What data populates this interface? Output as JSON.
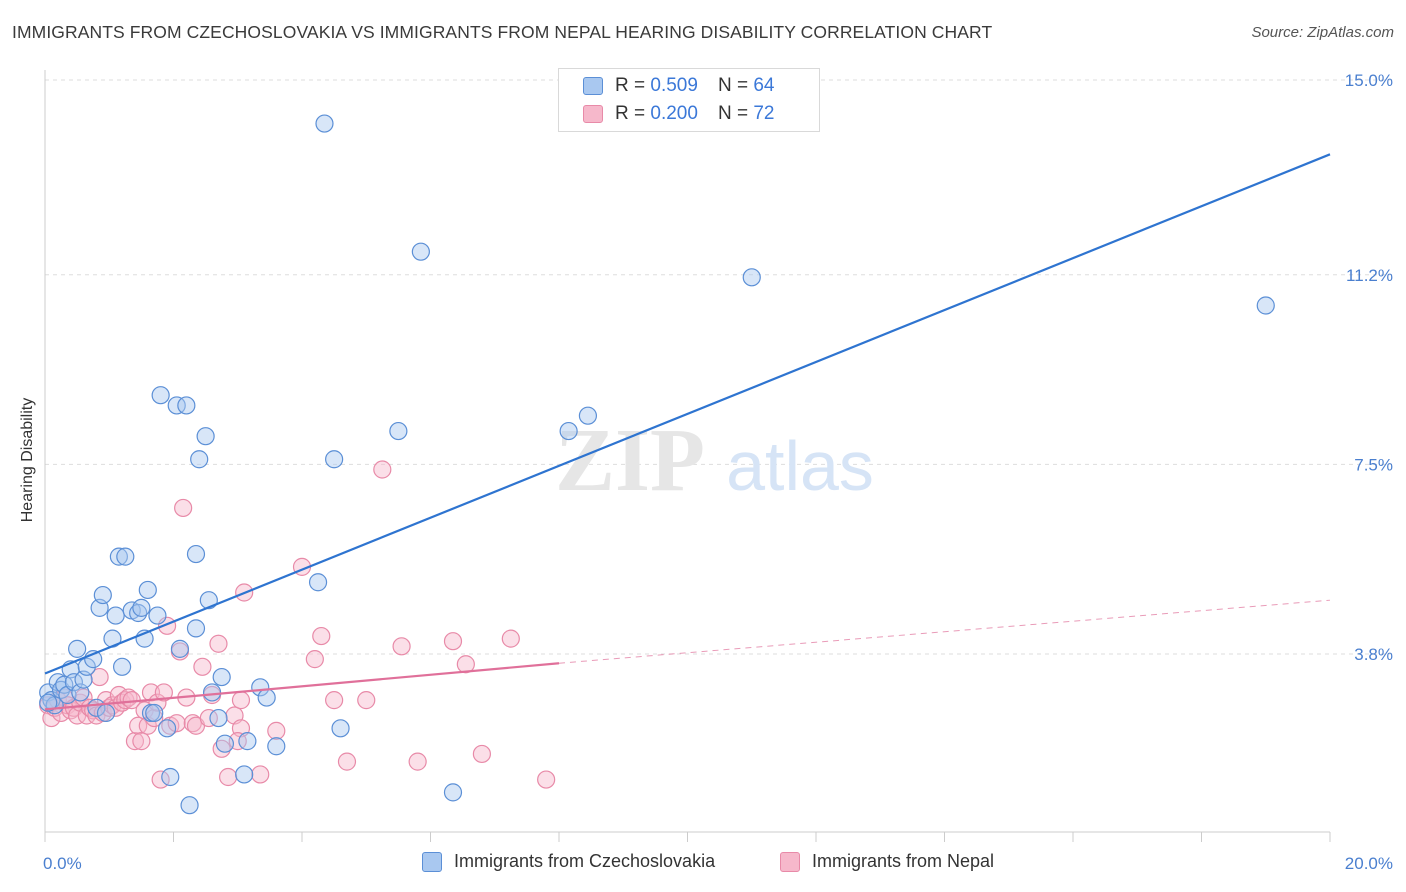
{
  "title": "IMMIGRANTS FROM CZECHOSLOVAKIA VS IMMIGRANTS FROM NEPAL HEARING DISABILITY CORRELATION CHART",
  "source": "Source: ZipAtlas.com",
  "watermark": {
    "zip": "ZIP",
    "atlas": "atlas"
  },
  "legend_top": {
    "rows": [
      {
        "r_label": "R =",
        "r_value": "0.509",
        "n_label": "N =",
        "n_value": "64"
      },
      {
        "r_label": "R =",
        "r_value": "0.200",
        "n_label": "N =",
        "n_value": "72"
      }
    ]
  },
  "legend_bottom": {
    "items": [
      {
        "label": "Immigrants from Czechoslovakia"
      },
      {
        "label": "Immigrants from Nepal"
      }
    ]
  },
  "colors": {
    "blue_fill": "#a9c8f0",
    "blue_stroke": "#5b8fd6",
    "blue_line": "#2e74d0",
    "pink_fill": "#f6b8cb",
    "pink_stroke": "#e88aa8",
    "pink_line": "#e0709a",
    "tick_text": "#4a7fcf",
    "grid": "#dddddd"
  },
  "chart_data": {
    "type": "scatter",
    "title": "IMMIGRANTS FROM CZECHOSLOVAKIA VS IMMIGRANTS FROM NEPAL HEARING DISABILITY CORRELATION CHART",
    "xlabel": "",
    "ylabel": "Hearing Disability",
    "xlim": [
      0,
      20
    ],
    "ylim": [
      0,
      15.5
    ],
    "x_tick_labels": [
      {
        "value": 0,
        "label": "0.0%"
      },
      {
        "value": 20,
        "label": "20.0%"
      }
    ],
    "y_tick_labels": [
      {
        "value": 3.8,
        "label": "3.8%"
      },
      {
        "value": 7.5,
        "label": "7.5%"
      },
      {
        "value": 11.2,
        "label": "11.2%"
      },
      {
        "value": 15.0,
        "label": "15.0%"
      }
    ],
    "grid": true,
    "legend_position": "top-center",
    "series": [
      {
        "name": "Immigrants from Czechoslovakia",
        "color": "#a9c8f0",
        "trend": {
          "x": [
            0,
            20
          ],
          "y": [
            3.42,
            13.55
          ],
          "style": "solid"
        },
        "points": [
          [
            0.05,
            3.05
          ],
          [
            0.1,
            2.9
          ],
          [
            0.15,
            2.8
          ],
          [
            0.2,
            3.25
          ],
          [
            0.25,
            3.1
          ],
          [
            0.3,
            3.2
          ],
          [
            0.35,
            3.0
          ],
          [
            0.4,
            3.5
          ],
          [
            0.45,
            3.25
          ],
          [
            0.5,
            3.9
          ],
          [
            0.55,
            3.05
          ],
          [
            0.6,
            3.3
          ],
          [
            0.65,
            3.55
          ],
          [
            0.75,
            3.7
          ],
          [
            0.8,
            2.75
          ],
          [
            0.85,
            4.7
          ],
          [
            0.9,
            4.95
          ],
          [
            0.95,
            2.65
          ],
          [
            1.05,
            4.1
          ],
          [
            1.1,
            4.55
          ],
          [
            1.15,
            5.7
          ],
          [
            1.2,
            3.55
          ],
          [
            1.25,
            5.7
          ],
          [
            1.35,
            4.65
          ],
          [
            1.45,
            4.6
          ],
          [
            1.5,
            4.7
          ],
          [
            1.55,
            4.1
          ],
          [
            1.6,
            5.05
          ],
          [
            1.65,
            2.65
          ],
          [
            1.7,
            2.65
          ],
          [
            1.75,
            4.55
          ],
          [
            1.8,
            8.85
          ],
          [
            1.9,
            2.35
          ],
          [
            1.95,
            1.4
          ],
          [
            2.05,
            8.65
          ],
          [
            2.1,
            3.9
          ],
          [
            2.2,
            8.65
          ],
          [
            2.25,
            0.85
          ],
          [
            2.35,
            4.3
          ],
          [
            2.35,
            5.75
          ],
          [
            2.4,
            7.6
          ],
          [
            2.5,
            8.05
          ],
          [
            2.55,
            4.85
          ],
          [
            2.6,
            3.05
          ],
          [
            2.7,
            2.55
          ],
          [
            2.75,
            3.35
          ],
          [
            2.8,
            2.05
          ],
          [
            3.1,
            1.45
          ],
          [
            3.15,
            2.1
          ],
          [
            3.35,
            3.15
          ],
          [
            3.45,
            2.95
          ],
          [
            3.6,
            2.0
          ],
          [
            4.25,
            5.2
          ],
          [
            4.35,
            14.15
          ],
          [
            4.5,
            7.6
          ],
          [
            4.6,
            2.35
          ],
          [
            5.5,
            8.15
          ],
          [
            5.85,
            11.65
          ],
          [
            6.35,
            1.1
          ],
          [
            8.15,
            8.15
          ],
          [
            8.45,
            8.45
          ],
          [
            11.0,
            11.15
          ],
          [
            19.0,
            10.6
          ],
          [
            0.05,
            2.85
          ]
        ]
      },
      {
        "name": "Immigrants from Nepal",
        "color": "#f6b8cb",
        "trend": {
          "x": [
            0,
            8
          ],
          "y": [
            2.72,
            3.62
          ],
          "style": "solid",
          "extended_x": [
            8,
            20
          ],
          "extended_y": [
            3.62,
            4.85
          ],
          "extended_style": "dashed"
        },
        "points": [
          [
            0.05,
            2.8
          ],
          [
            0.1,
            2.55
          ],
          [
            0.15,
            2.75
          ],
          [
            0.2,
            2.9
          ],
          [
            0.25,
            2.65
          ],
          [
            0.3,
            2.95
          ],
          [
            0.35,
            2.8
          ],
          [
            0.4,
            2.7
          ],
          [
            0.45,
            2.75
          ],
          [
            0.5,
            2.6
          ],
          [
            0.55,
            2.85
          ],
          [
            0.6,
            2.95
          ],
          [
            0.65,
            2.6
          ],
          [
            0.7,
            2.75
          ],
          [
            0.75,
            2.7
          ],
          [
            0.8,
            2.6
          ],
          [
            0.85,
            3.35
          ],
          [
            0.9,
            2.65
          ],
          [
            0.95,
            2.9
          ],
          [
            1.0,
            2.75
          ],
          [
            1.05,
            2.8
          ],
          [
            1.1,
            2.75
          ],
          [
            1.15,
            3.0
          ],
          [
            1.2,
            2.85
          ],
          [
            1.25,
            2.9
          ],
          [
            1.3,
            2.95
          ],
          [
            1.35,
            2.9
          ],
          [
            1.4,
            2.1
          ],
          [
            1.45,
            2.4
          ],
          [
            1.5,
            2.1
          ],
          [
            1.55,
            2.7
          ],
          [
            1.6,
            2.4
          ],
          [
            1.65,
            3.05
          ],
          [
            1.7,
            2.55
          ],
          [
            1.75,
            2.85
          ],
          [
            1.8,
            1.35
          ],
          [
            1.85,
            3.05
          ],
          [
            1.9,
            4.35
          ],
          [
            1.95,
            2.4
          ],
          [
            2.05,
            2.45
          ],
          [
            2.1,
            3.85
          ],
          [
            2.15,
            6.65
          ],
          [
            2.2,
            2.95
          ],
          [
            2.3,
            2.45
          ],
          [
            2.35,
            2.4
          ],
          [
            2.45,
            3.55
          ],
          [
            2.55,
            2.55
          ],
          [
            2.6,
            3.0
          ],
          [
            2.7,
            4.0
          ],
          [
            2.75,
            1.95
          ],
          [
            2.85,
            1.4
          ],
          [
            2.95,
            2.6
          ],
          [
            3.1,
            5.0
          ],
          [
            3.05,
            2.35
          ],
          [
            3.05,
            2.9
          ],
          [
            3.0,
            2.1
          ],
          [
            3.35,
            1.45
          ],
          [
            3.6,
            2.3
          ],
          [
            4.0,
            5.5
          ],
          [
            4.2,
            3.7
          ],
          [
            4.3,
            4.15
          ],
          [
            4.5,
            2.9
          ],
          [
            4.7,
            1.7
          ],
          [
            5.0,
            2.9
          ],
          [
            5.25,
            7.4
          ],
          [
            5.55,
            3.95
          ],
          [
            5.8,
            1.7
          ],
          [
            6.35,
            4.05
          ],
          [
            6.55,
            3.6
          ],
          [
            6.8,
            1.85
          ],
          [
            7.25,
            4.1
          ],
          [
            7.8,
            1.35
          ]
        ]
      }
    ]
  }
}
